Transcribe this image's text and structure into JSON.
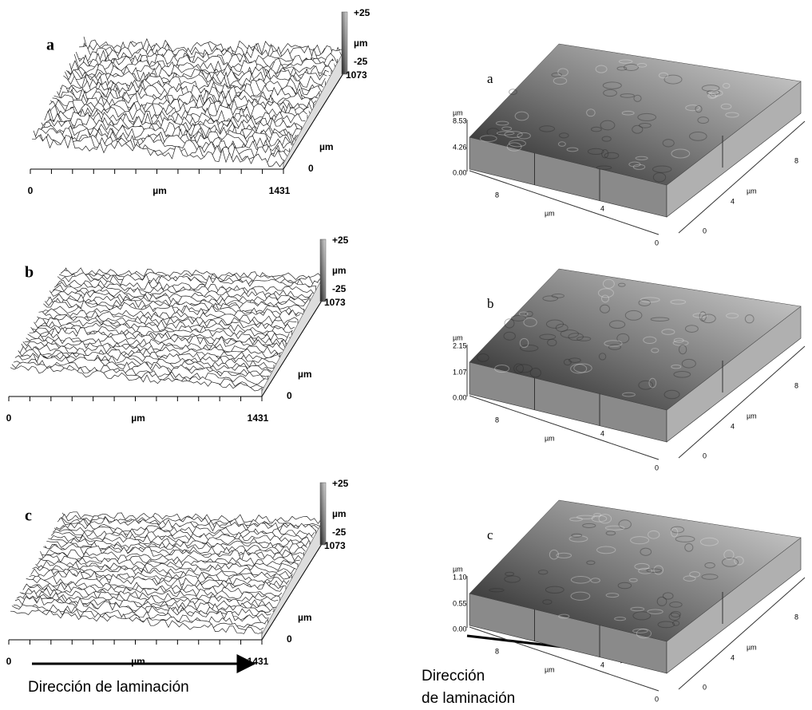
{
  "left_panels": [
    {
      "label": "a",
      "scale": [
        "+25",
        "µm",
        "-25",
        "1073"
      ],
      "depth_axis": [
        "µm",
        "0"
      ],
      "x_axis": [
        "0",
        "µm",
        "1431"
      ]
    },
    {
      "label": "b",
      "scale": [
        "+25",
        "µm",
        "-25",
        "1073"
      ],
      "depth_axis": [
        "µm",
        "0"
      ],
      "x_axis": [
        "0",
        "µm",
        "1431"
      ]
    },
    {
      "label": "c",
      "scale": [
        "+25",
        "µm",
        "-25",
        "1073"
      ],
      "depth_axis": [
        "µm",
        "0"
      ],
      "x_axis": [
        "0",
        "µm",
        "1431"
      ]
    }
  ],
  "right_panels": [
    {
      "label": "a",
      "z_axis": [
        "µm",
        "8.53",
        "4.26",
        "0.00"
      ],
      "front_axis": [
        "8",
        "µm",
        "4",
        "0"
      ],
      "side_axis": [
        "0",
        "4",
        "µm",
        "8"
      ]
    },
    {
      "label": "b",
      "z_axis": [
        "µm",
        "2.15",
        "1.07",
        "0.00"
      ],
      "front_axis": [
        "8",
        "µm",
        "4",
        "0"
      ],
      "side_axis": [
        "0",
        "4",
        "µm",
        "8"
      ]
    },
    {
      "label": "c",
      "z_axis": [
        "µm",
        "1.10",
        "0.55",
        "0.00"
      ],
      "front_axis": [
        "8",
        "µm",
        "4",
        "0"
      ],
      "side_axis": [
        "0",
        "4",
        "µm",
        "8"
      ]
    }
  ],
  "captions": {
    "left": "Dirección de laminación",
    "right": [
      "Dirección",
      "de laminación"
    ]
  }
}
